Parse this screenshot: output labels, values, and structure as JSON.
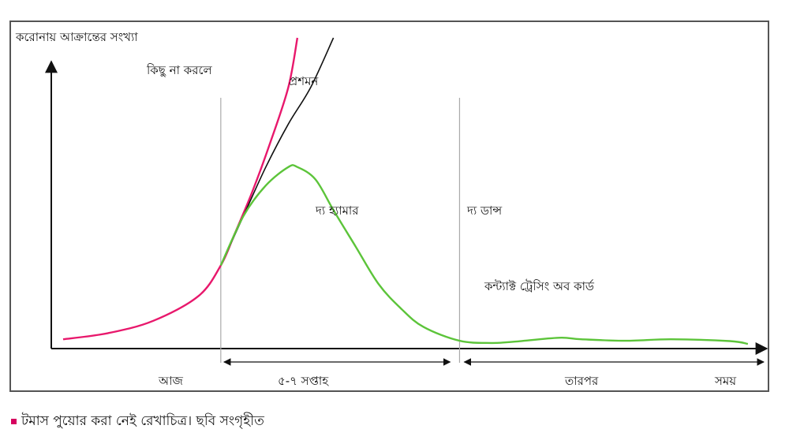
{
  "chart_data": {
    "type": "line",
    "ylabel": "করোনায় আক্রান্তের সংখ্যা",
    "xlabel": "সময়",
    "annotations": {
      "no_action": "কিছু না করলে",
      "spread": "প্রশমন",
      "hammer": "দ্য হ্যামার",
      "dance": "দ্য ডান্স",
      "contact_tracing": "কন্ট্যাক্ট ট্রেসিং অব কার্ড"
    },
    "x_ticks": {
      "today": "আজ",
      "weeks": "৫-৭ সপ্তাহ",
      "later": "তারপর",
      "time": "সময়"
    },
    "series": [
      {
        "key": "no_action",
        "color": "#e8186c",
        "points": [
          [
            0,
            2
          ],
          [
            10,
            4
          ],
          [
            20,
            8
          ],
          [
            30,
            16
          ],
          [
            35,
            26
          ],
          [
            38,
            36
          ],
          [
            42,
            50
          ],
          [
            46,
            66
          ],
          [
            50,
            84
          ],
          [
            52,
            100
          ]
        ]
      },
      {
        "key": "mitigation",
        "color": "#111111",
        "points": [
          [
            35,
            26
          ],
          [
            40,
            42
          ],
          [
            45,
            58
          ],
          [
            50,
            72
          ],
          [
            55,
            84
          ],
          [
            60,
            100
          ]
        ]
      },
      {
        "key": "hammer_dance",
        "color": "#5cc43a",
        "points": [
          [
            35,
            26
          ],
          [
            40,
            42
          ],
          [
            45,
            52
          ],
          [
            50,
            58
          ],
          [
            52,
            58
          ],
          [
            56,
            54
          ],
          [
            60,
            44
          ],
          [
            65,
            32
          ],
          [
            70,
            20
          ],
          [
            75,
            12
          ],
          [
            80,
            6
          ],
          [
            88,
            1.5
          ],
          [
            95,
            0.8
          ],
          [
            100,
            1.2
          ],
          [
            110,
            2.5
          ],
          [
            115,
            2
          ],
          [
            125,
            1.5
          ],
          [
            135,
            2
          ],
          [
            148,
            1.4
          ],
          [
            152,
            0.5
          ]
        ]
      }
    ],
    "xlim": [
      0,
      155
    ],
    "ylim": [
      0,
      100
    ],
    "markers": [
      35,
      88
    ]
  },
  "caption": {
    "text": "টমাস পুয়োর করা নেই রেখাচিত্র। ছবি সংগৃহীত"
  }
}
